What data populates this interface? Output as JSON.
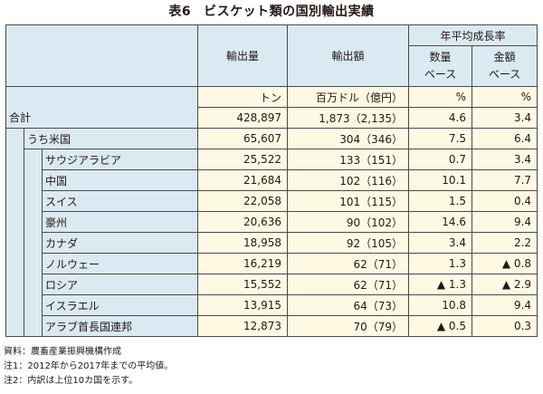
{
  "title": {
    "num": "表6",
    "text": "ビスケット類の国別輸出実績"
  },
  "headers": {
    "export_volume": "輸出量",
    "export_value": "輸出額",
    "growth_rate": "年平均成長率",
    "volume_basis": [
      "数量",
      "ベース"
    ],
    "value_basis": [
      "金額",
      "ベース"
    ]
  },
  "units": {
    "volume": "トン",
    "value": "百万ドル（億円）",
    "rate_volume": "%",
    "rate_value": "%"
  },
  "total": {
    "name": "合計",
    "volume": "428,897",
    "value": "1,873（2,135）",
    "vol_rate": "4.6",
    "val_rate": "3.4"
  },
  "usa": {
    "name": "うち米国",
    "volume": "65,607",
    "value": "304（346）",
    "vol_rate": "7.5",
    "val_rate": "6.4"
  },
  "rows": [
    {
      "name": "サウジアラビア",
      "volume": "25,522",
      "value": "133（151）",
      "vol_rate": "0.7",
      "val_rate": "3.4"
    },
    {
      "name": "中国",
      "volume": "21,684",
      "value": "102（116）",
      "vol_rate": "10.1",
      "val_rate": "7.7"
    },
    {
      "name": "スイス",
      "volume": "22,058",
      "value": "101（115）",
      "vol_rate": "1.5",
      "val_rate": "0.4"
    },
    {
      "name": "豪州",
      "volume": "20,636",
      "value": "90（102）",
      "vol_rate": "14.6",
      "val_rate": "9.4"
    },
    {
      "name": "カナダ",
      "volume": "18,958",
      "value": "92（105）",
      "vol_rate": "3.4",
      "val_rate": "2.2"
    },
    {
      "name": "ノルウェー",
      "volume": "16,219",
      "value": "62（71）",
      "vol_rate": "1.3",
      "val_rate": "▲ 0.8"
    },
    {
      "name": "ロシア",
      "volume": "15,552",
      "value": "62（71）",
      "vol_rate": "▲ 1.3",
      "val_rate": "▲ 2.9"
    },
    {
      "name": "イスラエル",
      "volume": "13,915",
      "value": "64（73）",
      "vol_rate": "10.8",
      "val_rate": "9.4"
    },
    {
      "name": "アラブ首長国連邦",
      "volume": "12,873",
      "value": "70（79）",
      "vol_rate": "▲ 0.5",
      "val_rate": "0.3"
    }
  ],
  "notes": [
    "資料：農畜産業振興機構作成",
    "注1：2012年から2017年までの平均値。",
    "注2：内訳は上位10カ国を示す。"
  ]
}
